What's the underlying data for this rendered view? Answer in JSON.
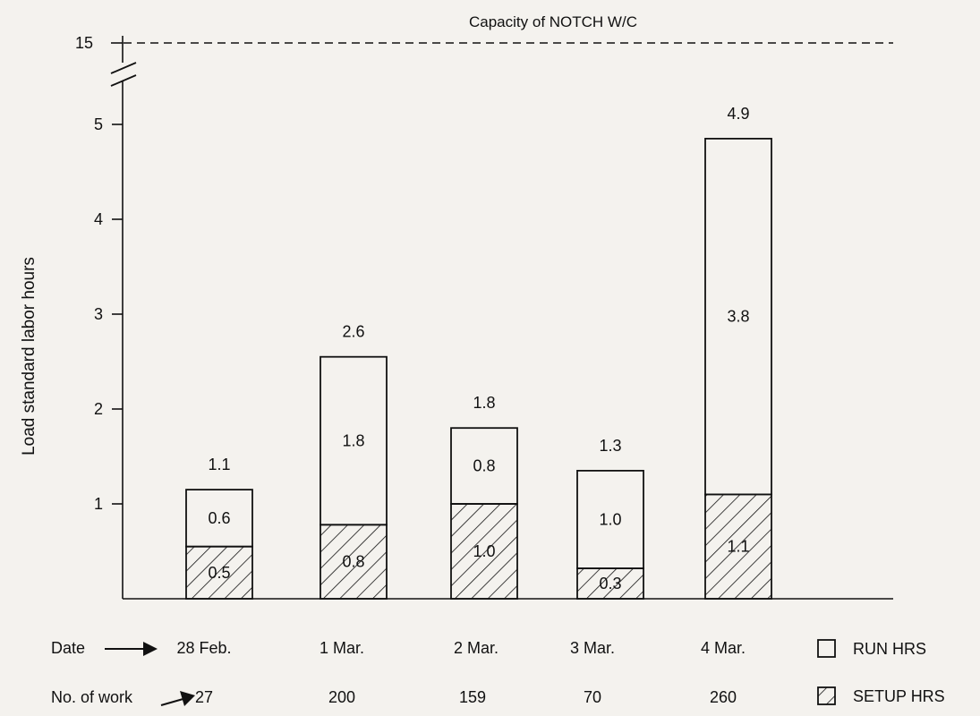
{
  "chart_data": {
    "type": "bar",
    "stacked": true,
    "ylabel": "Load standard labor hours",
    "ylim": [
      0,
      5.3
    ],
    "yticks": [
      1,
      2,
      3,
      4,
      5
    ],
    "capacity": {
      "value": 15,
      "label": "Capacity of NOTCH W/C"
    },
    "row_labels": {
      "date": "Date",
      "work": "No. of work"
    },
    "categories": [
      "28 Feb.",
      "1 Mar.",
      "2 Mar.",
      "3 Mar.",
      "4 Mar."
    ],
    "work_counts": [
      "27",
      "200",
      "159",
      "70",
      "260"
    ],
    "totals": [
      1.15,
      2.55,
      1.8,
      1.35,
      4.85
    ],
    "total_labels": [
      "1.1",
      "2.6",
      "1.8",
      "1.3",
      "4.9"
    ],
    "series": [
      {
        "name": "SETUP HRS",
        "values": [
          0.55,
          0.78,
          1.0,
          0.32,
          1.1
        ],
        "labels": [
          "0.5",
          "0.8",
          "1.0",
          "0.3",
          "1.1"
        ],
        "pattern": "hatched"
      },
      {
        "name": "RUN HRS",
        "values": [
          0.6,
          1.77,
          0.8,
          1.03,
          3.75
        ],
        "labels": [
          "0.6",
          "1.8",
          "0.8",
          "1.0",
          "3.8"
        ],
        "pattern": "empty"
      }
    ],
    "legend": [
      "RUN HRS",
      "SETUP HRS"
    ],
    "legend_position": "bottom-right",
    "grid": false,
    "colors": {
      "ink": "#111111",
      "background": "#f4f2ee"
    }
  }
}
